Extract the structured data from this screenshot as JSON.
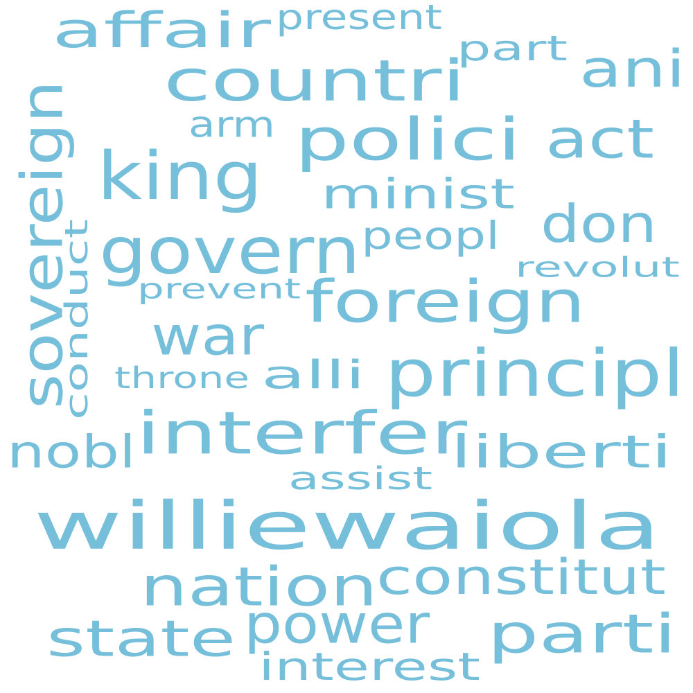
{
  "theme": {
    "word_color": "#75bfdb",
    "background": "#ffffff"
  },
  "words": [
    {
      "text": "williewaiola"
    },
    {
      "text": "govern"
    },
    {
      "text": "countri"
    },
    {
      "text": "foreign"
    },
    {
      "text": "interfer"
    },
    {
      "text": "king"
    },
    {
      "text": "polici"
    },
    {
      "text": "sovereign"
    },
    {
      "text": "nation"
    },
    {
      "text": "principl"
    },
    {
      "text": "parti"
    },
    {
      "text": "power"
    },
    {
      "text": "state"
    },
    {
      "text": "don"
    },
    {
      "text": "act"
    },
    {
      "text": "war"
    },
    {
      "text": "affair"
    },
    {
      "text": "ani"
    },
    {
      "text": "constitut"
    },
    {
      "text": "liberti"
    },
    {
      "text": "minist"
    },
    {
      "text": "nobl"
    },
    {
      "text": "peopl"
    },
    {
      "text": "conduct"
    },
    {
      "text": "interest"
    },
    {
      "text": "alli"
    },
    {
      "text": "part"
    },
    {
      "text": "present"
    },
    {
      "text": "arm"
    },
    {
      "text": "prevent"
    },
    {
      "text": "throne"
    },
    {
      "text": "revolut"
    },
    {
      "text": "assist"
    }
  ]
}
